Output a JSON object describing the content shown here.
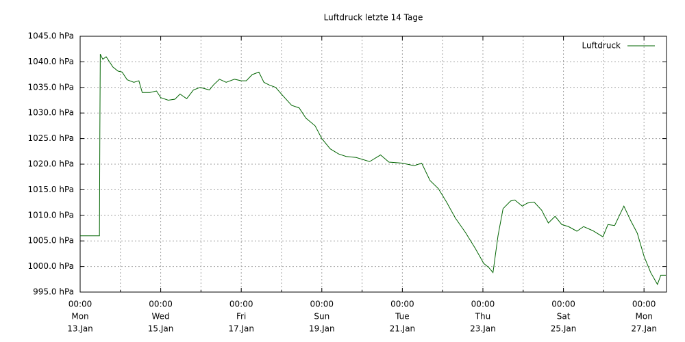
{
  "chart_data": {
    "type": "line",
    "title": "Luftdruck letzte 14 Tage",
    "xlim": [
      "01-13 00:00",
      "01-27 13:24"
    ],
    "xticks": [
      {
        "value": "01-13 00:00",
        "label": [
          "00:00",
          "Mon",
          "13.Jan"
        ]
      },
      {
        "value": "01-15 00:00",
        "label": [
          "00:00",
          "Wed",
          "15.Jan"
        ]
      },
      {
        "value": "01-17 00:00",
        "label": [
          "00:00",
          "Fri",
          "17.Jan"
        ]
      },
      {
        "value": "01-19 00:00",
        "label": [
          "00:00",
          "Sun",
          "19.Jan"
        ]
      },
      {
        "value": "01-21 00:00",
        "label": [
          "00:00",
          "Tue",
          "21.Jan"
        ]
      },
      {
        "value": "01-23 00:00",
        "label": [
          "00:00",
          "Thu",
          "23.Jan"
        ]
      },
      {
        "value": "01-25 00:00",
        "label": [
          "00:00",
          "Sat",
          "25.Jan"
        ]
      },
      {
        "value": "01-27 00:00",
        "label": [
          "00:00",
          "Mon",
          "27.Jan"
        ]
      }
    ],
    "x_minor_gridlines": [
      "01-14 00:00",
      "01-16 00:00",
      "01-18 00:00",
      "01-20 00:00",
      "01-22 00:00",
      "01-24 00:00",
      "01-26 00:00"
    ],
    "ylim": [
      995,
      1045
    ],
    "yticks": [
      {
        "value": 995,
        "label": "995.0 hPa"
      },
      {
        "value": 1000,
        "label": "1000.0 hPa"
      },
      {
        "value": 1005,
        "label": "1005.0 hPa"
      },
      {
        "value": 1010,
        "label": "1010.0 hPa"
      },
      {
        "value": 1015,
        "label": "1015.0 hPa"
      },
      {
        "value": 1020,
        "label": "1020.0 hPa"
      },
      {
        "value": 1025,
        "label": "1025.0 hPa"
      },
      {
        "value": 1030,
        "label": "1030.0 hPa"
      },
      {
        "value": 1035,
        "label": "1035.0 hPa"
      },
      {
        "value": 1040,
        "label": "1040.0 hPa"
      },
      {
        "value": 1045,
        "label": "1045.0 hPa"
      }
    ],
    "grid": true,
    "legend": "upper right",
    "x": [
      "01-13 00:00",
      "01-13 11:30",
      "01-13 11:45",
      "01-13 12:00",
      "01-13 13:30",
      "01-13 15:30",
      "01-13 19:30",
      "01-13 22:30",
      "01-14 01:00",
      "01-14 04:00",
      "01-14 08:00",
      "01-14 11:00",
      "01-14 13:00",
      "01-14 17:30",
      "01-14 21:30",
      "01-15 00:00",
      "01-15 04:30",
      "01-15 08:30",
      "01-15 11:30",
      "01-15 15:30",
      "01-15 19:30",
      "01-15 23:30",
      "01-16 05:00",
      "01-16 07:30",
      "01-16 11:00",
      "01-16 15:00",
      "01-16 20:00",
      "01-17 00:00",
      "01-17 03:00",
      "01-17 06:30",
      "01-17 10:30",
      "01-17 13:30",
      "01-17 16:30",
      "01-17 20:30",
      "01-18 00:30",
      "01-18 06:00",
      "01-18 10:30",
      "01-18 14:30",
      "01-18 20:00",
      "01-19 00:00",
      "01-19 05:00",
      "01-19 10:00",
      "01-19 14:30",
      "01-19 20:30",
      "01-20 04:30",
      "01-20 11:00",
      "01-20 16:00",
      "01-21 00:00",
      "01-21 07:00",
      "01-21 11:30",
      "01-21 16:30",
      "01-21 21:30",
      "01-22 02:30",
      "01-22 07:30",
      "01-22 13:30",
      "01-22 19:30",
      "01-23 00:30",
      "01-23 03:30",
      "01-23 06:00",
      "01-23 09:00",
      "01-23 12:00",
      "01-23 16:30",
      "01-23 19:00",
      "01-23 23:30",
      "01-24 02:30",
      "01-24 06:30",
      "01-24 11:00",
      "01-24 15:00",
      "01-24 19:00",
      "01-24 23:00",
      "01-25 03:00",
      "01-25 08:00",
      "01-25 12:00",
      "01-25 17:30",
      "01-25 23:30",
      "01-26 02:30",
      "01-26 06:30",
      "01-26 12:00",
      "01-26 16:00",
      "01-26 20:00",
      "01-27 00:00",
      "01-27 04:00",
      "01-27 08:00",
      "01-27 10:00",
      "01-27 13:00"
    ],
    "series": [
      {
        "name": "Luftdruck",
        "color": "#006400",
        "values": [
          1006,
          1006,
          1026.7,
          1041.5,
          1040.5,
          1041,
          1039,
          1038.2,
          1038,
          1036.5,
          1036,
          1036.3,
          1034,
          1034,
          1034.3,
          1033,
          1032.5,
          1032.7,
          1033.7,
          1032.8,
          1034.5,
          1035,
          1034.5,
          1035.5,
          1036.6,
          1036,
          1036.6,
          1036.3,
          1036.3,
          1037.5,
          1038,
          1036,
          1035.5,
          1035,
          1033.5,
          1031.5,
          1031,
          1029,
          1027.5,
          1025,
          1023,
          1022,
          1021.5,
          1021.3,
          1020.5,
          1021.8,
          1020.4,
          1020.2,
          1019.7,
          1020.2,
          1016.8,
          1015.2,
          1012.5,
          1009.5,
          1006.7,
          1003.5,
          1000.6,
          999.8,
          998.8,
          1006,
          1011.3,
          1012.8,
          1013,
          1011.8,
          1012.4,
          1012.6,
          1011,
          1008.5,
          1009.8,
          1008.2,
          1007.8,
          1006.9,
          1007.8,
          1007,
          1005.8,
          1008.2,
          1008,
          1011.8,
          1009,
          1006.5,
          1002,
          998.8,
          996.5,
          998.3,
          998.3
        ]
      }
    ]
  }
}
